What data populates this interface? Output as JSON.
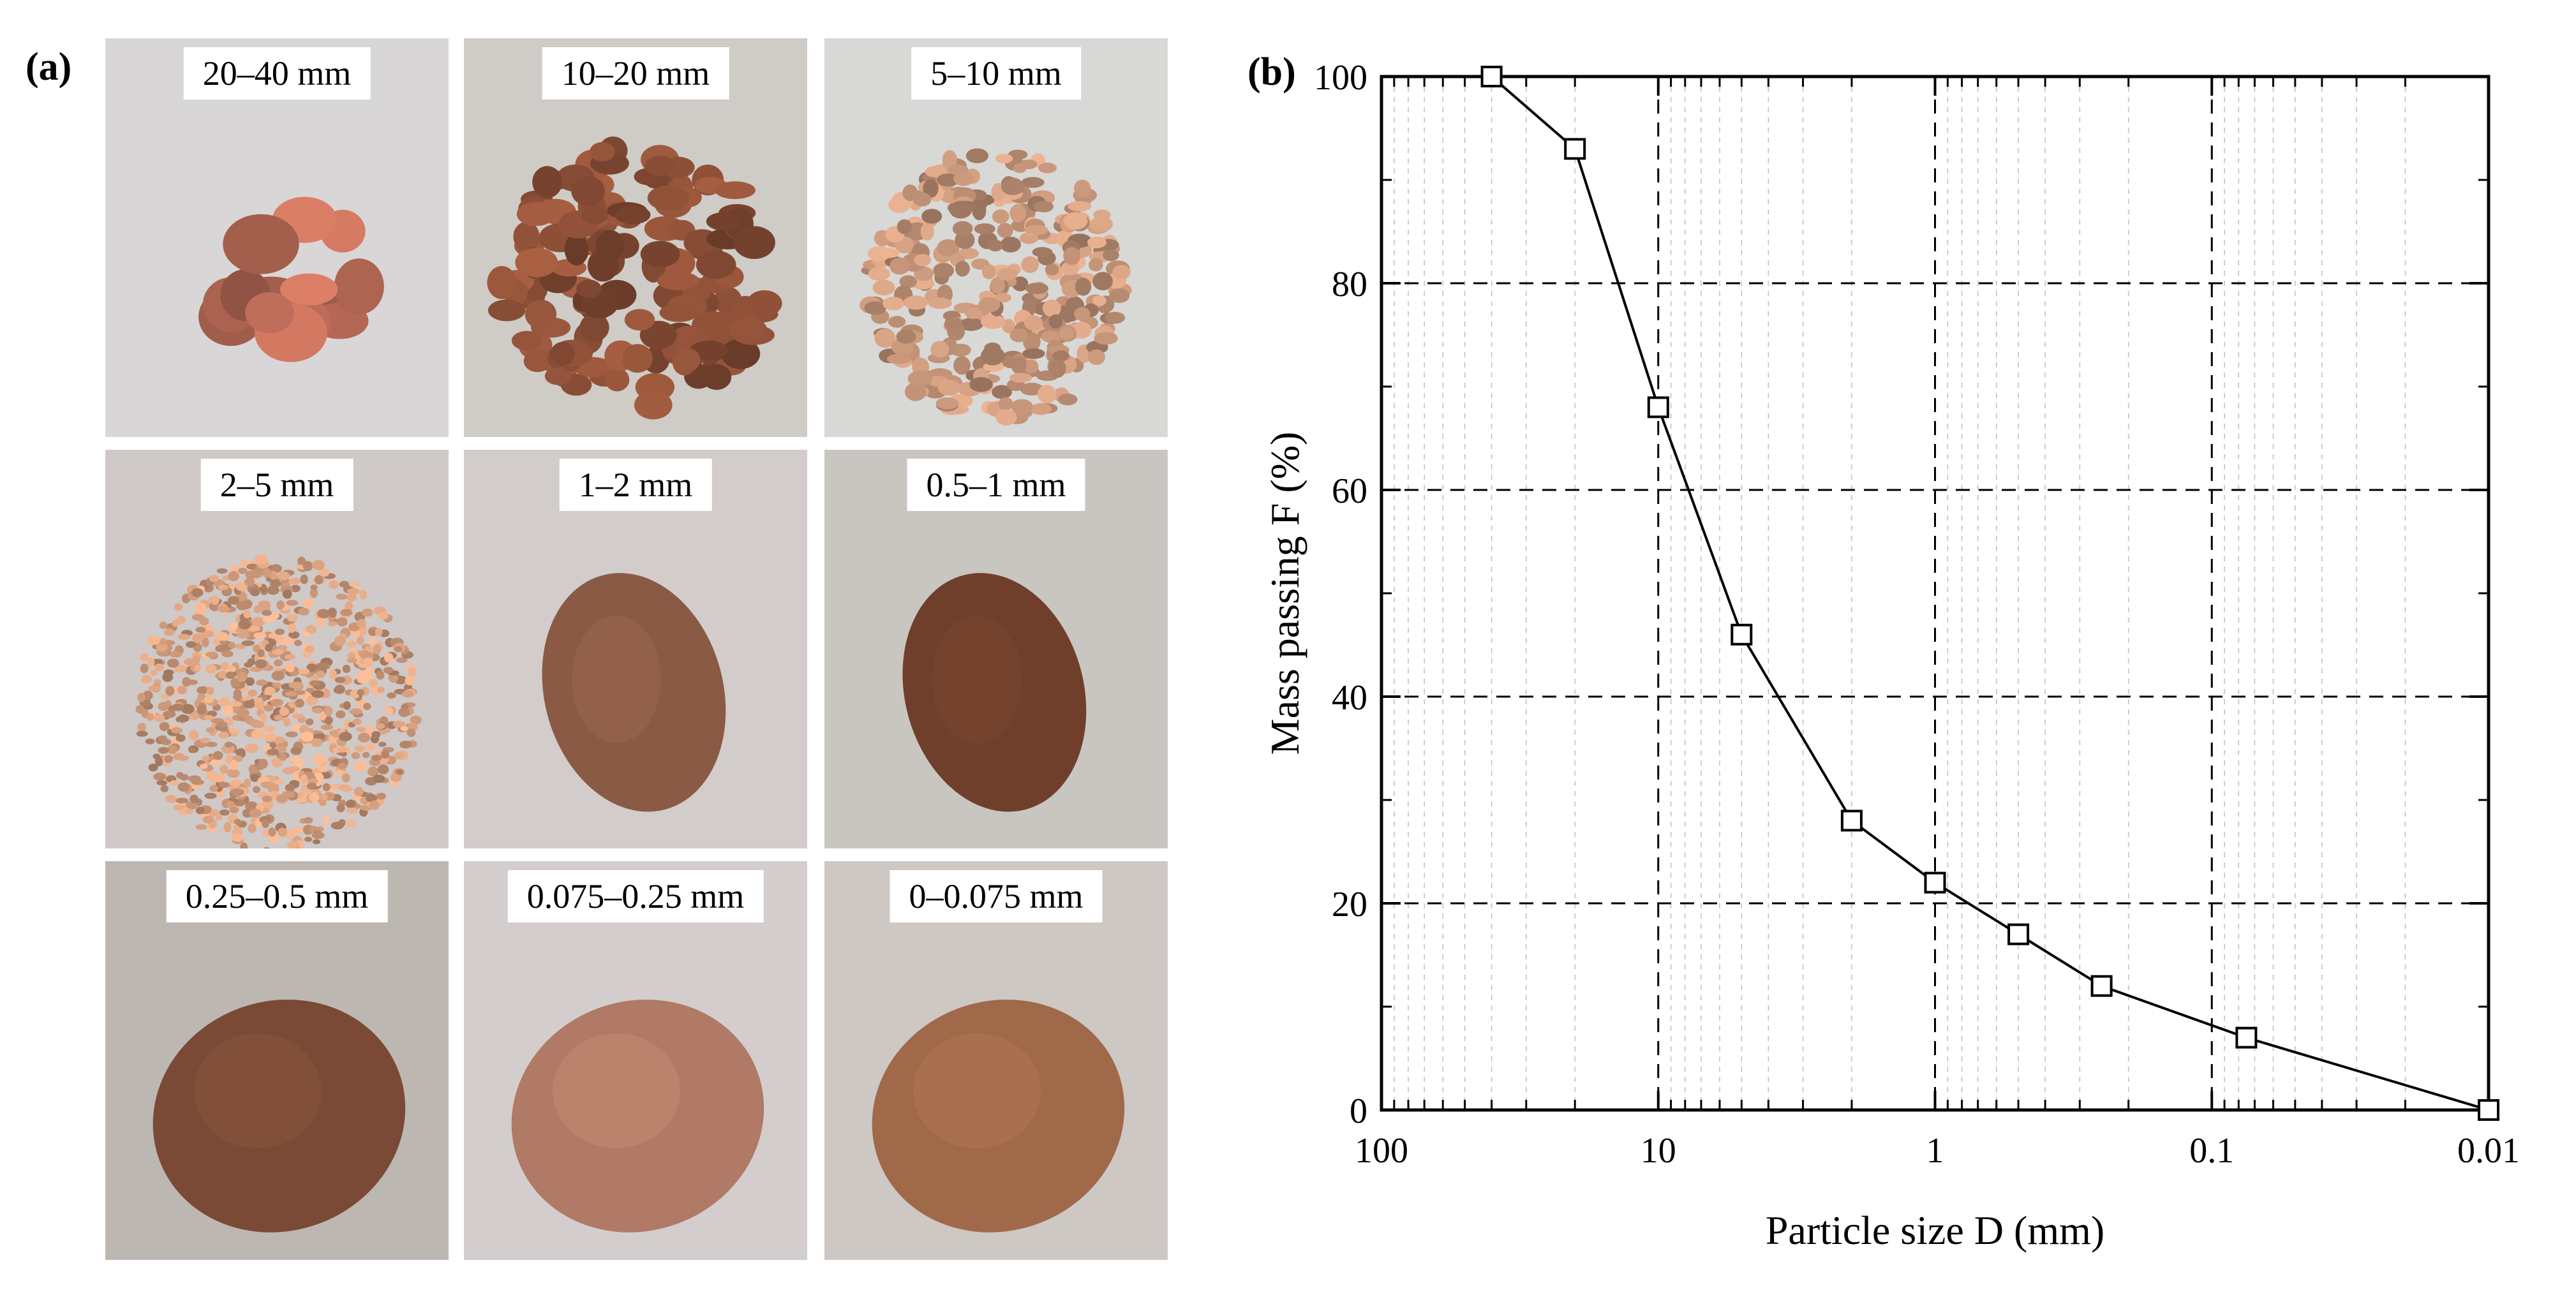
{
  "panels": {
    "a_label": "(a)",
    "b_label": "(b)"
  },
  "samples": [
    {
      "label": "20–40 mm",
      "bg": "#d9d6d8",
      "pile_color": "#b86a56",
      "pile_style": "chunks-large"
    },
    {
      "label": "10–20 mm",
      "bg": "#cfccc7",
      "pile_color": "#8c4f37",
      "pile_style": "chunks-medium"
    },
    {
      "label": "5–10 mm",
      "bg": "#d8d8d6",
      "pile_color": "#c6967a",
      "pile_style": "chunks-small"
    },
    {
      "label": "2–5 mm",
      "bg": "#cfc9c8",
      "pile_color": "#d7a07f",
      "pile_style": "granular"
    },
    {
      "label": "1–2 mm",
      "bg": "#d2cdcb",
      "pile_color": "#8a5a45",
      "pile_style": "sand"
    },
    {
      "label": "0.5–1 mm",
      "bg": "#c9c6c1",
      "pile_color": "#6f3f2b",
      "pile_style": "sand"
    },
    {
      "label": "0.25–0.5 mm",
      "bg": "#bdb7b2",
      "pile_color": "#7a4a36",
      "pile_style": "powder"
    },
    {
      "label": "0.075–0.25 mm",
      "bg": "#d3cecd",
      "pile_color": "#b07a66",
      "pile_style": "powder"
    },
    {
      "label": "0–0.075 mm",
      "bg": "#cdc8c3",
      "pile_color": "#a0694a",
      "pile_style": "powder"
    }
  ],
  "chart_data": {
    "type": "line",
    "xlabel": "Particle size D (mm)",
    "ylabel": "Mass passing F (%)",
    "x_scale": "log",
    "x_reversed": true,
    "xlim": [
      100,
      0.01
    ],
    "ylim": [
      0,
      100
    ],
    "x_ticks": [
      "100",
      "10",
      "1",
      "0.1",
      "0.01"
    ],
    "y_ticks": [
      "0",
      "20",
      "40",
      "60",
      "80",
      "100"
    ],
    "grid": true,
    "marker": "open-square",
    "line_color": "#000000",
    "x": [
      40,
      20,
      10,
      5,
      2,
      1,
      0.5,
      0.25,
      0.075,
      0.01
    ],
    "y": [
      100,
      93,
      68,
      46,
      28,
      22,
      17,
      12,
      7,
      0
    ]
  }
}
